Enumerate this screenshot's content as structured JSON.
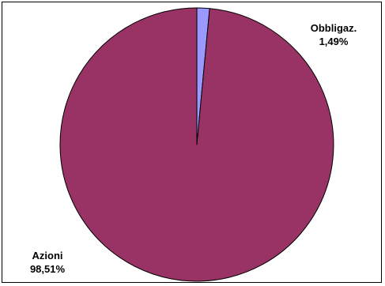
{
  "chart_data": {
    "type": "pie",
    "title": "",
    "slices": [
      {
        "label": "Obbligaz.",
        "value": 1.49,
        "value_label": "1,49%",
        "color": "#9999FF"
      },
      {
        "label": "Azioni",
        "value": 98.51,
        "value_label": "98,51%",
        "color": "#993366"
      }
    ],
    "start_angle": "12 o'clock",
    "direction": "clockwise",
    "border_color": "#000000",
    "legend": "none"
  }
}
